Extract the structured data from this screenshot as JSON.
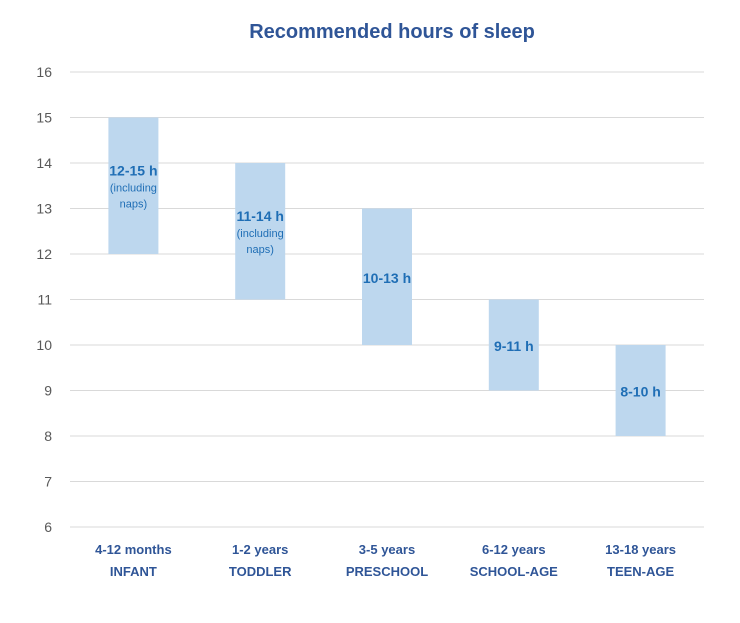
{
  "chart_data": {
    "type": "bar",
    "title": "Recommended hours of sleep",
    "xlabel": "",
    "ylabel": "",
    "ylim": [
      6,
      16
    ],
    "yticks": [
      6,
      7,
      8,
      9,
      10,
      11,
      12,
      13,
      14,
      15,
      16
    ],
    "grid": true,
    "categories": [
      {
        "line1": "4-12 months",
        "line2": "INFANT"
      },
      {
        "line1": "1-2 years",
        "line2": "TODDLER"
      },
      {
        "line1": "3-5 years",
        "line2": "PRESCHOOL"
      },
      {
        "line1": "6-12 years",
        "line2": "SCHOOL-AGE"
      },
      {
        "line1": "13-18 years",
        "line2": "TEEN-AGE"
      }
    ],
    "ranges": [
      {
        "low": 12,
        "high": 15,
        "label": "12-15 h",
        "note": [
          "(including",
          "naps)"
        ]
      },
      {
        "low": 11,
        "high": 14,
        "label": "11-14 h",
        "note": [
          "(including",
          "naps)"
        ]
      },
      {
        "low": 10,
        "high": 13,
        "label": "10-13 h",
        "note": []
      },
      {
        "low": 9,
        "high": 11,
        "label": "9-11 h",
        "note": []
      },
      {
        "low": 8,
        "high": 10,
        "label": "8-10 h",
        "note": []
      }
    ],
    "colors": {
      "bar": "#bdd7ee",
      "label": "#1f6eb5",
      "title": "#2f5597",
      "category": "#2f5597",
      "grid": "#d9d9d9"
    }
  }
}
